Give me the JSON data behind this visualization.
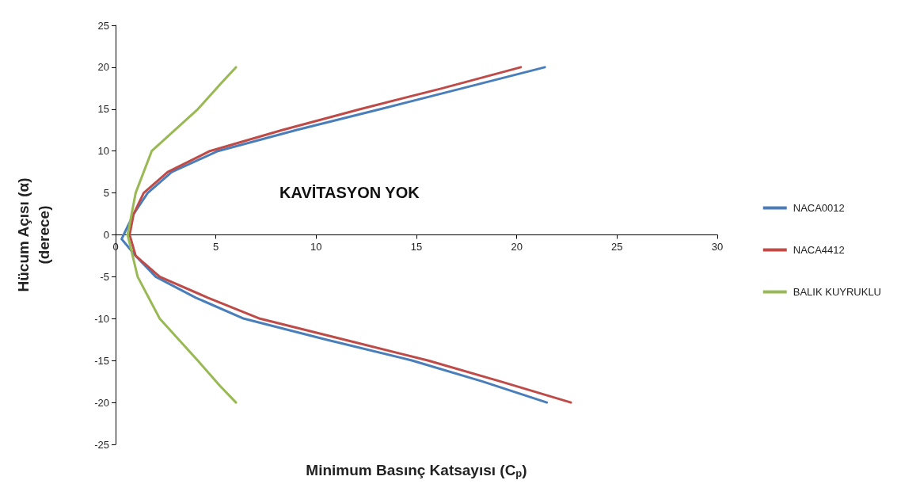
{
  "chart_data": {
    "type": "line",
    "xlabel": "Minimum Basınç Katsayısı (C$_{p}$)",
    "ylabel": "Hücum Açısı (α)\n(derece)",
    "xlim": [
      0,
      30
    ],
    "xticks": [
      0,
      5,
      10,
      15,
      20,
      25,
      30
    ],
    "ylim": [
      -25,
      25
    ],
    "yticks": [
      -25,
      -20,
      -15,
      -10,
      -5,
      0,
      5,
      10,
      15,
      20,
      25
    ],
    "grid": false,
    "legend": "right",
    "marker": "none",
    "line_style": "solid",
    "annotations": [
      "KAVİTASYON YOK"
    ],
    "series": [
      {
        "name": "NACA0012",
        "color": "#4a7ebb",
        "x": [
          21.5,
          18.3,
          14.8,
          10.5,
          6.4,
          4.0,
          2.0,
          1.0,
          0.3,
          0.4,
          0.9,
          1.6,
          2.8,
          5.1,
          9.0,
          13.2,
          17.3,
          21.4
        ],
        "values": [
          -20,
          -17.5,
          -15,
          -12.5,
          -10,
          -7.5,
          -5,
          -2.5,
          -0.5,
          0,
          2.5,
          5,
          7.5,
          10,
          12.5,
          15,
          17.5,
          20
        ]
      },
      {
        "name": "NACA4412",
        "color": "#be4b48",
        "x": [
          22.7,
          19.2,
          15.6,
          11.4,
          7.2,
          4.6,
          2.2,
          1.0,
          0.7,
          0.9,
          1.4,
          2.6,
          4.7,
          8.3,
          12.2,
          16.3,
          20.2
        ],
        "values": [
          -20,
          -17.5,
          -15,
          -12.5,
          -10,
          -7.5,
          -5,
          -2.5,
          0,
          2.5,
          5,
          7.5,
          10,
          12.5,
          15,
          17.5,
          20
        ]
      },
      {
        "name": "BALIK KUYRUKLU",
        "color": "#98b954",
        "x": [
          6.0,
          5.2,
          4.1,
          2.2,
          1.1,
          0.6,
          1.0,
          1.8,
          4.1,
          5.3,
          6.0
        ],
        "values": [
          -20,
          -18,
          -15,
          -10,
          -5,
          0,
          5,
          10,
          15,
          18.2,
          20
        ]
      }
    ]
  }
}
